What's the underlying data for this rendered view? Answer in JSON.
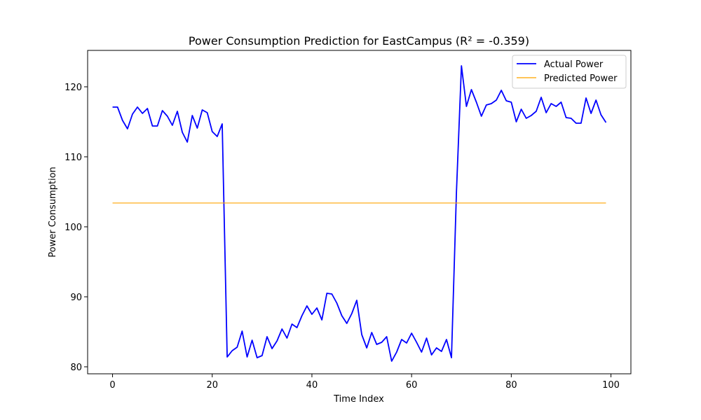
{
  "chart_data": {
    "type": "line",
    "title": "Power Consumption Prediction for EastCampus (R² = -0.359)",
    "xlabel": "Time Index",
    "ylabel": "Power Consumption",
    "xlim": [
      -5,
      104
    ],
    "ylim": [
      79,
      125.2
    ],
    "xticks": [
      0,
      20,
      40,
      60,
      80,
      100
    ],
    "yticks": [
      80,
      90,
      100,
      110,
      120
    ],
    "grid": false,
    "legend_position": "top-right",
    "series": [
      {
        "name": "Actual Power",
        "color": "#0000ff",
        "x": [
          0,
          1,
          2,
          3,
          4,
          5,
          6,
          7,
          8,
          9,
          10,
          11,
          12,
          13,
          14,
          15,
          16,
          17,
          18,
          19,
          20,
          21,
          22,
          23,
          24,
          25,
          26,
          27,
          28,
          29,
          30,
          31,
          32,
          33,
          34,
          35,
          36,
          37,
          38,
          39,
          40,
          41,
          42,
          43,
          44,
          45,
          46,
          47,
          48,
          49,
          50,
          51,
          52,
          53,
          54,
          55,
          56,
          57,
          58,
          59,
          60,
          61,
          62,
          63,
          64,
          65,
          66,
          67,
          68,
          69,
          70,
          71,
          72,
          73,
          74,
          75,
          76,
          77,
          78,
          79,
          80,
          81,
          82,
          83,
          84,
          85,
          86,
          87,
          88,
          89,
          90,
          91,
          92,
          93,
          94,
          95,
          96,
          97,
          98,
          99
        ],
        "y": [
          117.1,
          117.1,
          115.2,
          114.0,
          116.1,
          117.1,
          116.2,
          116.9,
          114.4,
          114.4,
          116.6,
          115.8,
          114.5,
          116.5,
          113.5,
          112.1,
          115.9,
          114.1,
          116.7,
          116.3,
          113.6,
          112.9,
          114.7,
          81.4,
          82.3,
          82.8,
          85.1,
          81.4,
          83.8,
          81.3,
          81.6,
          84.3,
          82.6,
          83.7,
          85.4,
          84.1,
          86.1,
          85.6,
          87.3,
          88.7,
          87.5,
          88.4,
          86.7,
          90.5,
          90.4,
          89.1,
          87.3,
          86.2,
          87.6,
          89.5,
          84.6,
          82.7,
          84.9,
          83.2,
          83.5,
          84.3,
          80.8,
          82.1,
          83.9,
          83.4,
          84.8,
          83.5,
          82.1,
          84.1,
          81.7,
          82.7,
          82.2,
          83.9,
          81.3,
          105.0,
          123.0,
          117.2,
          119.6,
          117.8,
          115.8,
          117.4,
          117.6,
          118.1,
          119.5,
          118.0,
          117.8,
          115.0,
          116.8,
          115.5,
          115.9,
          116.5,
          118.5,
          116.3,
          117.6,
          117.2,
          117.8,
          115.6,
          115.5,
          114.8,
          114.8,
          118.4,
          116.2,
          118.1,
          116.0,
          114.9
        ]
      },
      {
        "name": "Predicted Power",
        "color": "#ffa500",
        "x": [
          0,
          1,
          2,
          3,
          4,
          5,
          6,
          7,
          8,
          9,
          10,
          11,
          12,
          13,
          14,
          15,
          16,
          17,
          18,
          19,
          20,
          21,
          22,
          23,
          24,
          25,
          26,
          27,
          28,
          29,
          30,
          31,
          32,
          33,
          34,
          35,
          36,
          37,
          38,
          39,
          40,
          41,
          42,
          43,
          44,
          45,
          46,
          47,
          48,
          49,
          50,
          51,
          52,
          53,
          54,
          55,
          56,
          57,
          58,
          59,
          60,
          61,
          62,
          63,
          64,
          65,
          66,
          67,
          68,
          69,
          70,
          71,
          72,
          73,
          74,
          75,
          76,
          77,
          78,
          79,
          80,
          81,
          82,
          83,
          84,
          85,
          86,
          87,
          88,
          89,
          90,
          91,
          92,
          93,
          94,
          95,
          96,
          97,
          98,
          99
        ],
        "y": [
          103.4,
          103.4,
          103.4,
          103.4,
          103.4,
          103.4,
          103.4,
          103.4,
          103.4,
          103.4,
          103.4,
          103.4,
          103.4,
          103.4,
          103.4,
          103.4,
          103.4,
          103.4,
          103.4,
          103.4,
          103.4,
          103.4,
          103.4,
          103.4,
          103.4,
          103.4,
          103.4,
          103.4,
          103.4,
          103.4,
          103.4,
          103.4,
          103.4,
          103.4,
          103.4,
          103.4,
          103.4,
          103.4,
          103.4,
          103.4,
          103.4,
          103.4,
          103.4,
          103.4,
          103.4,
          103.4,
          103.4,
          103.4,
          103.4,
          103.4,
          103.4,
          103.4,
          103.4,
          103.4,
          103.4,
          103.4,
          103.4,
          103.4,
          103.4,
          103.4,
          103.4,
          103.4,
          103.4,
          103.4,
          103.4,
          103.4,
          103.4,
          103.4,
          103.4,
          103.4,
          103.4,
          103.4,
          103.4,
          103.4,
          103.4,
          103.4,
          103.4,
          103.4,
          103.4,
          103.4,
          103.4,
          103.4,
          103.4,
          103.4,
          103.4,
          103.4,
          103.4,
          103.4,
          103.4,
          103.4,
          103.4,
          103.4,
          103.4,
          103.4,
          103.4,
          103.4,
          103.4,
          103.4,
          103.4,
          103.4
        ]
      }
    ]
  }
}
